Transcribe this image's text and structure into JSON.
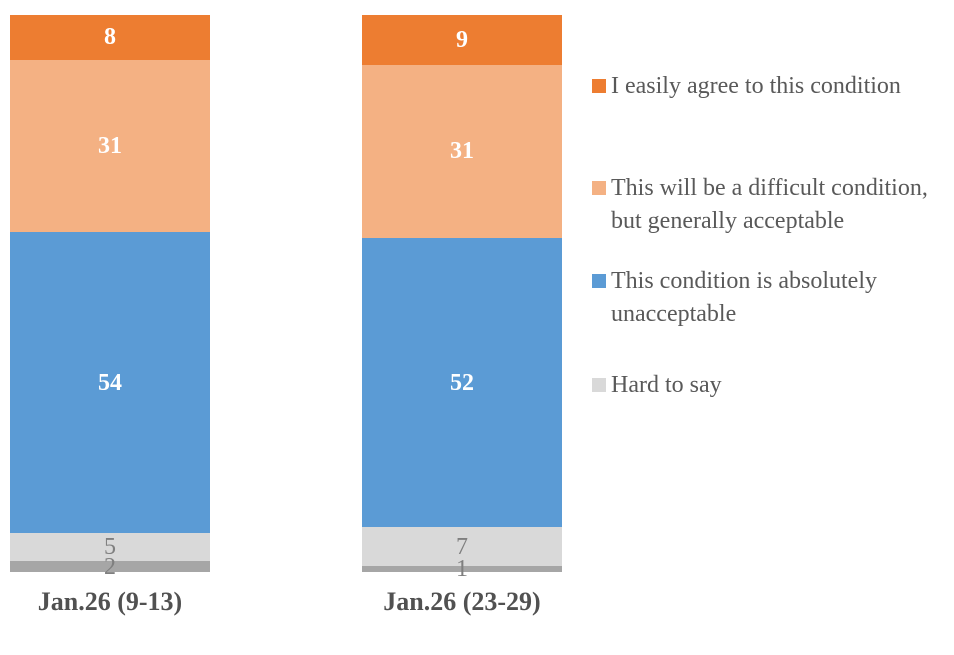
{
  "chart_data": {
    "type": "bar",
    "stacked": true,
    "orientation": "vertical",
    "grid": false,
    "ylim": [
      0,
      100
    ],
    "background": "#FFFFFF",
    "categories": [
      "Jan.26 (9-13)",
      "Jan.26 (23-29)"
    ],
    "category_label_color": "#515151",
    "series": [
      {
        "name": "I easily agree to this condition",
        "color": "#ED7D31",
        "values": [
          8,
          9
        ],
        "label_color": "#FFFFFF",
        "label_bold": true
      },
      {
        "name": "This will be a difficult condition, but generally acceptable",
        "color": "#F4B183",
        "values": [
          31,
          31
        ],
        "label_color": "#FFFFFF",
        "label_bold": true
      },
      {
        "name": "This condition is absolutely unacceptable",
        "color": "#5B9BD5",
        "values": [
          54,
          52
        ],
        "label_color": "#FFFFFF",
        "label_bold": true
      },
      {
        "name": "Hard to say",
        "color": "#D9D9D9",
        "values": [
          5,
          7
        ],
        "label_color": "#7F7F7F",
        "label_bold": false
      },
      {
        "name": "",
        "color": "#A6A6A6",
        "values": [
          2,
          1
        ],
        "label_color": "#7F7F7F",
        "label_bold": false
      }
    ],
    "legend": {
      "position": "right",
      "text_color": "#595959",
      "items": [
        {
          "label": "I easily agree to this condition",
          "color": "#ED7D31"
        },
        {
          "label": "This will be a difficult condition, but generally acceptable",
          "color": "#F4B183"
        },
        {
          "label": "This condition is absolutely unacceptable",
          "color": "#5B9BD5"
        },
        {
          "label": "Hard to say",
          "color": "#D9D9D9"
        }
      ]
    }
  }
}
